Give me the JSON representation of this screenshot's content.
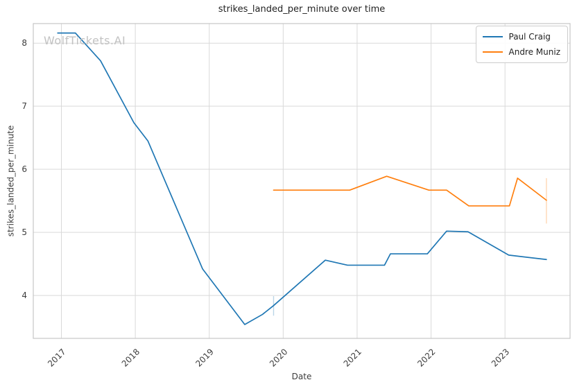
{
  "watermark": "WolfTickets.AI",
  "chart_data": {
    "type": "line",
    "title": "strikes_landed_per_minute over time",
    "xlabel": "Date",
    "ylabel": "strikes_landed_per_minute",
    "xlim": [
      2016.62,
      2023.88
    ],
    "ylim": [
      3.32,
      8.31
    ],
    "x_ticks": [
      2017,
      2018,
      2019,
      2020,
      2021,
      2022,
      2023
    ],
    "y_ticks": [
      4,
      5,
      6,
      7,
      8
    ],
    "grid": true,
    "legend_position": "upper-right",
    "colors": {
      "grid": "#d9d9d9",
      "spine": "#c6c6c6",
      "tick_label": "#3d3d3d",
      "blue": "#1f77b4",
      "orange": "#ff7f0e"
    },
    "series": [
      {
        "name": "Paul Craig",
        "color": "#1f77b4",
        "x": [
          2016.95,
          2017.19,
          2017.53,
          2017.98,
          2018.17,
          2018.91,
          2019.48,
          2019.72,
          2019.87,
          2020.57,
          2020.87,
          2021.37,
          2021.45,
          2021.95,
          2022.21,
          2022.5,
          2023.05,
          2023.56
        ],
        "y": [
          8.16,
          8.16,
          7.72,
          6.74,
          6.45,
          4.42,
          3.54,
          3.7,
          3.84,
          4.56,
          4.48,
          4.48,
          4.66,
          4.66,
          5.02,
          5.01,
          4.64,
          4.57
        ],
        "error_bars": [
          {
            "x": 2019.87,
            "y_low": 3.68,
            "y_high": 3.99
          }
        ]
      },
      {
        "name": "Andre Muniz",
        "color": "#ff7f0e",
        "x": [
          2019.87,
          2020.9,
          2021.4,
          2021.97,
          2022.21,
          2022.51,
          2023.06,
          2023.17,
          2023.56
        ],
        "y": [
          5.67,
          5.67,
          5.89,
          5.67,
          5.67,
          5.42,
          5.42,
          5.86,
          5.51
        ],
        "error_bars": [
          {
            "x": 2023.56,
            "y_low": 5.14,
            "y_high": 5.86
          }
        ]
      }
    ]
  }
}
